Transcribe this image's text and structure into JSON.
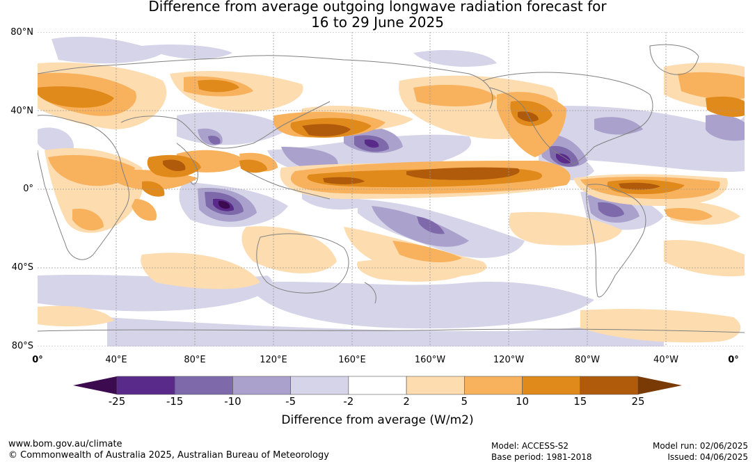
{
  "title": {
    "line1": "Difference from average outgoing longwave radiation forecast for",
    "line2": "16 to 29 June 2025"
  },
  "map": {
    "lat_labels": [
      "80°N",
      "40°N",
      "0°",
      "40°S",
      "80°S"
    ],
    "lon_labels": [
      "0°",
      "40°E",
      "80°E",
      "120°E",
      "160°E",
      "160°W",
      "120°W",
      "80°W",
      "40°W",
      "0°"
    ]
  },
  "colorbar": {
    "title": "Difference from average (W/m2)",
    "ticks": [
      "-25",
      "-15",
      "-10",
      "-5",
      "-2",
      "2",
      "5",
      "10",
      "15",
      "25"
    ],
    "colors": [
      "#3c0a4e",
      "#5a2a8a",
      "#7e6aaa",
      "#aaa2cc",
      "#d6d4e8",
      "#ffffff",
      "#fddcb0",
      "#f8b15c",
      "#e08a1c",
      "#b05a0c",
      "#7a3a06"
    ]
  },
  "footer": {
    "website": "www.bom.gov.au/climate",
    "copyright": "© Commonwealth of Australia 2025, Australian Bureau of Meteorology",
    "model": "Model: ACCESS-S2",
    "base_period": "Base period: 1981-2018",
    "model_run": "Model run: 02/06/2025",
    "issued": "Issued: 04/06/2025"
  }
}
